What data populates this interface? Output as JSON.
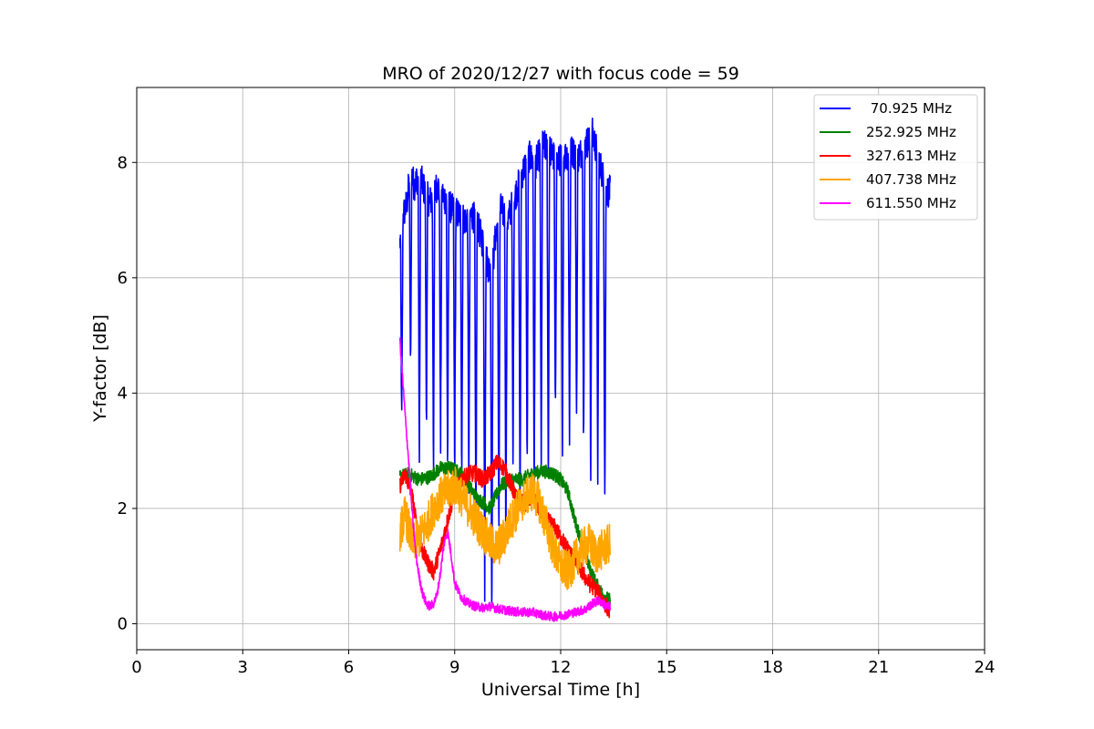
{
  "chart_data": {
    "type": "line",
    "title": "MRO of 2020/12/27 with focus code = 59",
    "xlabel": "Universal Time [h]",
    "ylabel": "Y-factor [dB]",
    "xlim": [
      0,
      24
    ],
    "ylim": [
      -0.45,
      9.3
    ],
    "xticks": [
      0,
      3,
      6,
      9,
      12,
      15,
      18,
      21,
      24
    ],
    "yticks": [
      0,
      2,
      4,
      6,
      8
    ],
    "grid": true,
    "legend_position": "top-right",
    "series": [
      {
        "name": " 70.925 MHz",
        "color": "#0000ff",
        "x": [
          7.45,
          7.55,
          7.65,
          7.75,
          7.85,
          8.0,
          8.15,
          8.3,
          8.5,
          8.7,
          8.9,
          9.1,
          9.3,
          9.5,
          9.65,
          9.8,
          9.95,
          10.05,
          10.15,
          10.3,
          10.5,
          10.7,
          10.9,
          11.1,
          11.3,
          11.5,
          11.7,
          11.9,
          12.1,
          12.3,
          12.5,
          12.7,
          12.9,
          13.1,
          13.3,
          13.4
        ],
        "y": [
          6.6,
          7.1,
          7.3,
          7.9,
          7.6,
          7.8,
          7.5,
          7.3,
          7.6,
          7.4,
          7.2,
          7.1,
          7.0,
          7.1,
          6.9,
          6.6,
          6.2,
          6.0,
          6.7,
          7.2,
          7.0,
          7.4,
          7.8,
          8.1,
          8.0,
          8.3,
          8.2,
          8.0,
          8.1,
          8.2,
          8.1,
          8.3,
          8.5,
          8.0,
          7.5,
          7.5
        ],
        "dips": [
          7.5,
          7.75,
          8.0,
          8.2,
          8.4,
          8.6,
          8.8,
          9.0,
          9.2,
          9.4,
          9.6,
          9.85,
          10.05,
          10.25,
          10.45,
          10.65,
          10.85,
          11.05,
          11.25,
          11.45,
          11.65,
          11.85,
          12.05,
          12.25,
          12.45,
          12.65,
          12.85,
          13.05,
          13.25
        ],
        "dip_min": [
          3.3,
          4.2,
          2.6,
          3.4,
          2.6,
          3.0,
          2.6,
          2.5,
          2.5,
          2.4,
          1.4,
          0.6,
          0.0,
          1.4,
          1.2,
          2.7,
          1.7,
          2.4,
          2.0,
          2.5,
          2.3,
          3.3,
          2.6,
          3.0,
          3.4,
          3.0,
          2.3,
          2.1,
          1.9
        ]
      },
      {
        "name": "252.925 MHz",
        "color": "#008000",
        "x": [
          7.45,
          7.7,
          8.0,
          8.3,
          8.6,
          8.9,
          9.2,
          9.4,
          9.6,
          9.8,
          10.0,
          10.3,
          10.6,
          10.9,
          11.2,
          11.5,
          11.8,
          12.0,
          12.2,
          12.4,
          12.6,
          12.8,
          13.0,
          13.2,
          13.4
        ],
        "y": [
          2.55,
          2.6,
          2.5,
          2.55,
          2.7,
          2.7,
          2.6,
          2.4,
          2.2,
          2.1,
          2.0,
          2.4,
          2.5,
          2.5,
          2.6,
          2.65,
          2.6,
          2.5,
          2.3,
          1.8,
          1.4,
          1.0,
          0.7,
          0.5,
          0.4
        ]
      },
      {
        "name": "327.613 MHz",
        "color": "#ff0000",
        "x": [
          7.45,
          7.6,
          7.8,
          8.0,
          8.2,
          8.4,
          8.6,
          8.8,
          9.0,
          9.2,
          9.4,
          9.6,
          9.8,
          10.0,
          10.2,
          10.4,
          10.6,
          10.8,
          11.0,
          11.2,
          11.4,
          11.6,
          11.8,
          12.0,
          12.2,
          12.4,
          12.6,
          12.8,
          13.0,
          13.2,
          13.4
        ],
        "y": [
          2.4,
          2.6,
          2.2,
          1.4,
          1.1,
          0.9,
          1.3,
          1.8,
          2.3,
          2.5,
          2.6,
          2.6,
          2.5,
          2.6,
          2.8,
          2.7,
          2.4,
          2.1,
          2.1,
          2.2,
          2.0,
          1.8,
          1.7,
          1.5,
          1.3,
          1.1,
          0.9,
          0.7,
          0.6,
          0.4,
          0.2
        ]
      },
      {
        "name": "407.738 MHz",
        "color": "#ffa500",
        "x": [
          7.45,
          7.6,
          7.8,
          8.0,
          8.2,
          8.4,
          8.6,
          8.8,
          9.0,
          9.2,
          9.4,
          9.6,
          9.8,
          10.0,
          10.2,
          10.4,
          10.6,
          10.8,
          11.0,
          11.2,
          11.4,
          11.6,
          11.8,
          12.0,
          12.2,
          12.4,
          12.6,
          12.8,
          13.0,
          13.2,
          13.4
        ],
        "y": [
          1.6,
          1.9,
          1.4,
          1.5,
          1.7,
          2.0,
          2.2,
          2.3,
          2.4,
          2.2,
          2.0,
          1.8,
          1.6,
          1.4,
          1.3,
          1.5,
          1.8,
          2.0,
          2.2,
          2.3,
          2.1,
          1.7,
          1.3,
          1.0,
          0.9,
          1.1,
          1.3,
          1.4,
          1.2,
          1.3,
          1.4
        ]
      },
      {
        "name": "611.550 MHz",
        "color": "#ff00ff",
        "x": [
          7.45,
          7.52,
          7.6,
          7.7,
          7.8,
          7.9,
          8.0,
          8.1,
          8.2,
          8.3,
          8.4,
          8.5,
          8.6,
          8.7,
          8.8,
          8.9,
          9.0,
          9.2,
          9.4,
          9.6,
          9.8,
          10.0,
          10.3,
          10.6,
          10.9,
          11.2,
          11.5,
          11.8,
          12.1,
          12.4,
          12.7,
          12.9,
          13.1,
          13.3,
          13.4
        ],
        "y": [
          4.9,
          4.3,
          3.6,
          2.8,
          1.9,
          1.2,
          0.8,
          0.5,
          0.35,
          0.3,
          0.35,
          0.5,
          0.9,
          1.4,
          1.6,
          1.2,
          0.7,
          0.45,
          0.35,
          0.3,
          0.28,
          0.3,
          0.25,
          0.22,
          0.2,
          0.2,
          0.15,
          0.12,
          0.15,
          0.2,
          0.25,
          0.35,
          0.4,
          0.3,
          0.3
        ]
      }
    ]
  }
}
